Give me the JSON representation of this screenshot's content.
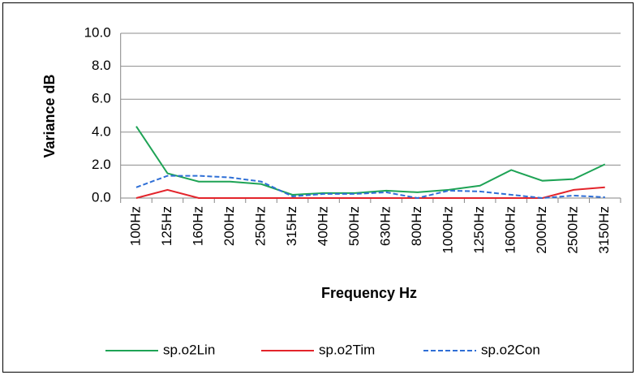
{
  "chart_data": {
    "type": "line",
    "xlabel": "Frequency Hz",
    "ylabel": "Variance dB",
    "categories": [
      "100Hz",
      "125Hz",
      "160Hz",
      "200Hz",
      "250Hz",
      "315Hz",
      "400Hz",
      "500Hz",
      "630Hz",
      "800Hz",
      "1000Hz",
      "1250Hz",
      "1600Hz",
      "2000Hz",
      "2500Hz",
      "3150Hz"
    ],
    "series": [
      {
        "name": "sp.o2Lin",
        "color": "#1ea355",
        "dash": false,
        "values": [
          4.35,
          1.5,
          1.0,
          1.0,
          0.85,
          0.2,
          0.3,
          0.3,
          0.45,
          0.35,
          0.5,
          0.75,
          1.7,
          1.05,
          1.15,
          2.05
        ]
      },
      {
        "name": "sp.o2Tim",
        "color": "#e3242b",
        "dash": false,
        "values": [
          0,
          0.5,
          0,
          0,
          0,
          0,
          0,
          0,
          0,
          0,
          0,
          0,
          0,
          0,
          0.5,
          0.65
        ]
      },
      {
        "name": "sp.o2Con",
        "color": "#2f6fd6",
        "dash": true,
        "values": [
          0.65,
          1.35,
          1.35,
          1.25,
          1.0,
          0.1,
          0.25,
          0.25,
          0.35,
          0,
          0.45,
          0.4,
          0.2,
          0,
          0.15,
          0.05
        ]
      }
    ],
    "ylim": [
      0,
      10
    ],
    "yticks": [
      {
        "value": 0,
        "label": "0.0"
      },
      {
        "value": 2,
        "label": "2.0"
      },
      {
        "value": 4,
        "label": "4.0"
      },
      {
        "value": 6,
        "label": "6.0"
      },
      {
        "value": 8,
        "label": "8.0"
      },
      {
        "value": 10,
        "label": "10.0"
      }
    ],
    "grid": true,
    "legend": "bottom"
  }
}
